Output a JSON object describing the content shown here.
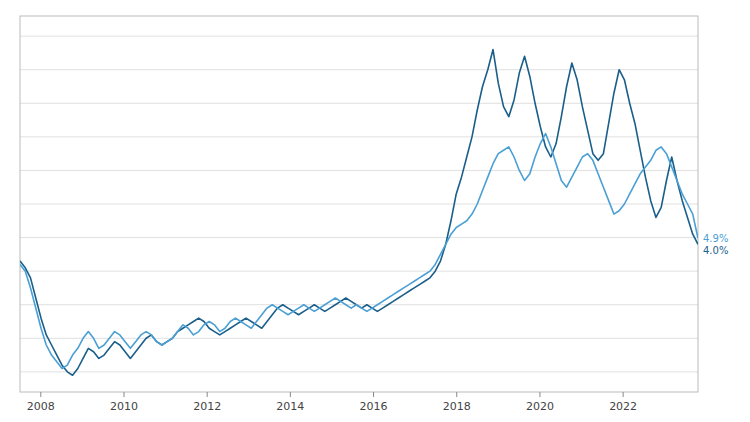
{
  "chart_data": {
    "type": "line",
    "x": [
      2007.5,
      2007.626357,
      2007.752713,
      2007.87907,
      2008.005426,
      2008.131783,
      2008.25814,
      2008.384496,
      2008.510853,
      2008.637209,
      2008.763566,
      2008.889922,
      2009.016279,
      2009.142636,
      2009.268992,
      2009.395349,
      2009.521705,
      2009.648062,
      2009.774419,
      2009.900775,
      2010.027132,
      2010.153488,
      2010.279845,
      2010.406202,
      2010.532558,
      2010.658915,
      2010.785271,
      2010.911628,
      2011.037984,
      2011.164341,
      2011.290698,
      2011.417054,
      2011.543411,
      2011.669767,
      2011.796124,
      2011.922481,
      2012.048837,
      2012.175194,
      2012.30155,
      2012.427907,
      2012.554264,
      2012.68062,
      2012.806977,
      2012.933333,
      2013.05969,
      2013.186047,
      2013.312403,
      2013.43876,
      2013.565116,
      2013.691473,
      2013.817829,
      2013.944186,
      2014.070543,
      2014.196899,
      2014.323256,
      2014.449612,
      2014.575969,
      2014.702326,
      2014.828682,
      2014.955039,
      2015.081395,
      2015.207752,
      2015.334109,
      2015.460465,
      2015.586822,
      2015.713178,
      2015.839535,
      2015.965891,
      2016.092248,
      2016.218605,
      2016.344961,
      2016.471318,
      2016.597674,
      2016.724031,
      2016.850388,
      2016.976744,
      2017.103101,
      2017.229457,
      2017.355814,
      2017.482171,
      2017.608527,
      2017.734884,
      2017.86124,
      2017.987597,
      2018.113953,
      2018.24031,
      2018.366667,
      2018.493023,
      2018.61938,
      2018.745736,
      2018.872093,
      2018.99845,
      2019.124806,
      2019.251163,
      2019.377519,
      2019.503876,
      2019.630233,
      2019.756589,
      2019.882946,
      2020.009302,
      2020.135659,
      2020.262016,
      2020.388372,
      2020.514729,
      2020.641085,
      2020.767442,
      2020.893798,
      2021.020155,
      2021.146512,
      2021.272868,
      2021.399225,
      2021.525581,
      2021.651938,
      2021.778295,
      2021.904651,
      2022.031008,
      2022.157364,
      2022.283721,
      2022.410078,
      2022.536434,
      2022.662791,
      2022.789147,
      2022.915504,
      2023.04186,
      2023.168217,
      2023.294574,
      2023.42093,
      2023.547287,
      2023.673643,
      2023.8
    ],
    "series": [
      {
        "color": "#4a9fd4",
        "values": [
          1.0,
          0.0,
          -2.5,
          -5.5,
          -8.5,
          -11.0,
          -12.5,
          -13.5,
          -14.5,
          -14.0,
          -12.5,
          -11.5,
          -10.0,
          -9.0,
          -10.0,
          -11.5,
          -11.0,
          -10.0,
          -9.0,
          -9.5,
          -10.5,
          -11.5,
          -10.5,
          -9.5,
          -9.0,
          -9.5,
          -10.5,
          -11.0,
          -10.5,
          -10.0,
          -9.0,
          -8.0,
          -8.5,
          -9.5,
          -9.0,
          -8.0,
          -7.5,
          -8.0,
          -9.0,
          -8.5,
          -7.5,
          -7.0,
          -7.5,
          -8.0,
          -8.5,
          -7.5,
          -6.5,
          -5.5,
          -5.0,
          -5.5,
          -6.0,
          -6.5,
          -6.0,
          -5.5,
          -5.0,
          -5.5,
          -6.0,
          -5.5,
          -5.0,
          -4.5,
          -4.0,
          -4.5,
          -5.0,
          -5.5,
          -5.0,
          -5.5,
          -6.0,
          -5.5,
          -5.0,
          -4.5,
          -4.0,
          -3.5,
          -3.0,
          -2.5,
          -2.0,
          -1.5,
          -1.0,
          -0.5,
          0.0,
          1.0,
          2.5,
          4.0,
          5.5,
          6.5,
          7.0,
          7.5,
          8.5,
          10.0,
          12.0,
          14.0,
          16.0,
          17.5,
          18.0,
          18.5,
          17.0,
          15.0,
          13.5,
          14.5,
          17.0,
          19.0,
          20.5,
          18.5,
          16.0,
          13.5,
          12.5,
          14.0,
          15.5,
          17.0,
          17.5,
          16.5,
          14.5,
          12.5,
          10.5,
          8.5,
          9.0,
          10.0,
          11.5,
          13.0,
          14.5,
          15.5,
          16.5,
          18.0,
          18.5,
          17.5,
          15.5,
          13.5,
          11.5,
          10.0,
          8.5,
          4.9
        ]
      },
      {
        "color": "#1a5f8a",
        "values": [
          1.5,
          0.5,
          -1.0,
          -4.0,
          -7.0,
          -9.5,
          -11.0,
          -12.5,
          -14.0,
          -15.0,
          -15.5,
          -14.5,
          -13.0,
          -11.5,
          -12.0,
          -13.0,
          -12.5,
          -11.5,
          -10.5,
          -11.0,
          -12.0,
          -13.0,
          -12.0,
          -11.0,
          -10.0,
          -9.5,
          -10.5,
          -11.0,
          -10.5,
          -10.0,
          -9.0,
          -8.5,
          -8.0,
          -7.5,
          -7.0,
          -7.5,
          -8.5,
          -9.0,
          -9.5,
          -9.0,
          -8.5,
          -8.0,
          -7.5,
          -7.0,
          -7.5,
          -8.0,
          -8.5,
          -7.5,
          -6.5,
          -5.5,
          -5.0,
          -5.5,
          -6.0,
          -6.5,
          -6.0,
          -5.5,
          -5.0,
          -5.5,
          -6.0,
          -5.5,
          -5.0,
          -4.5,
          -4.0,
          -4.5,
          -5.0,
          -5.5,
          -5.0,
          -5.5,
          -6.0,
          -5.5,
          -5.0,
          -4.5,
          -4.0,
          -3.5,
          -3.0,
          -2.5,
          -2.0,
          -1.5,
          -1.0,
          0.0,
          1.5,
          4.0,
          7.5,
          11.5,
          14.0,
          17.0,
          20.0,
          24.0,
          27.5,
          30.0,
          33.0,
          28.0,
          24.5,
          23.0,
          25.5,
          29.5,
          32.0,
          29.0,
          25.0,
          21.5,
          18.5,
          17.0,
          19.0,
          23.0,
          27.5,
          31.0,
          28.5,
          24.5,
          21.0,
          17.5,
          16.5,
          17.5,
          22.0,
          26.5,
          30.0,
          28.5,
          25.0,
          22.0,
          18.0,
          14.0,
          10.5,
          8.0,
          9.5,
          13.5,
          17.0,
          13.5,
          10.5,
          8.0,
          5.5,
          4.0
        ]
      }
    ],
    "annotations": [
      "4.9%",
      "4.0%"
    ],
    "xlim": [
      2007.5,
      2023.8
    ],
    "xticks": [
      2008,
      2010,
      2012,
      2014,
      2016,
      2018,
      2020,
      2022
    ],
    "ylim": [
      -18,
      38
    ],
    "yticks": [
      -15,
      -10,
      -5,
      0,
      5,
      10,
      15,
      20,
      25,
      30,
      35
    ],
    "grid": true,
    "tick_labels": "x"
  }
}
